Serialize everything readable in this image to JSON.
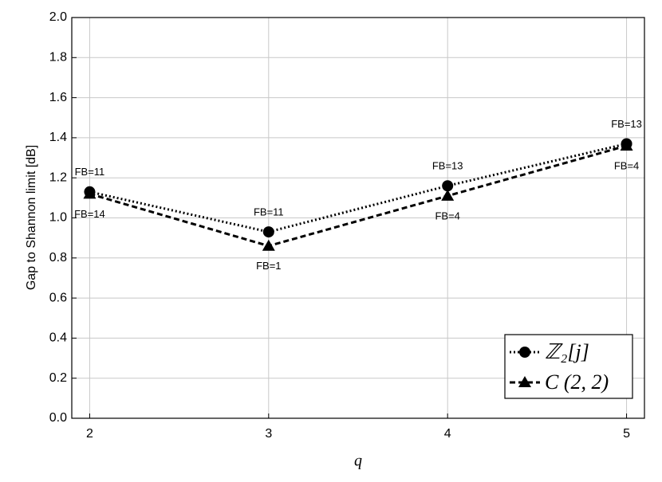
{
  "chart_data": {
    "type": "line",
    "xlabel": "q",
    "ylabel": "Gap to Shannon limit [dB]",
    "x": [
      2,
      3,
      4,
      5
    ],
    "series": [
      {
        "name": "ℤ₂[j]",
        "color": "#000000",
        "dash": "2,3",
        "marker": "circle",
        "values": [
          1.13,
          0.93,
          1.16,
          1.37
        ],
        "annotations": [
          "FB=11",
          "FB=11",
          "FB=13",
          "FB=13"
        ],
        "annotation_side": "above"
      },
      {
        "name": "C (2, 2)",
        "color": "#000000",
        "dash": "7,4",
        "marker": "triangle",
        "values": [
          1.12,
          0.86,
          1.11,
          1.36
        ],
        "annotations": [
          "FB=14",
          "FB=1",
          "FB=4",
          "FB=4"
        ],
        "annotation_side": "below"
      }
    ],
    "xlim": [
      1.9,
      5.1
    ],
    "xticks": [
      2,
      3,
      4,
      5
    ],
    "ylim": [
      0,
      2
    ],
    "yticks": [
      {
        "value": 0,
        "label": "0.0"
      },
      0.2,
      0.4,
      0.6,
      0.8,
      {
        "value": 1,
        "label": "1.0"
      },
      1.2,
      1.4,
      1.6,
      1.8,
      {
        "value": 2,
        "label": "2.0"
      }
    ],
    "grid": true,
    "legend": "lower right"
  }
}
